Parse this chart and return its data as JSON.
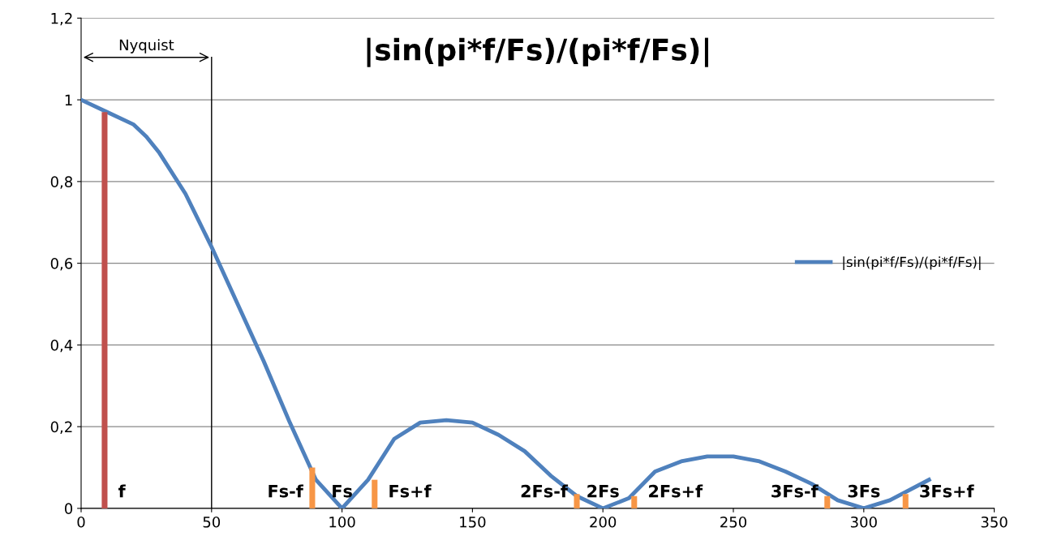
{
  "chart_data": {
    "type": "line",
    "title": "|sin(pi*f/Fs)/(pi*f/Fs)|",
    "xlim": [
      0,
      350
    ],
    "xticks": [
      0,
      50,
      100,
      150,
      200,
      250,
      300,
      350
    ],
    "ylim": [
      0,
      1.2
    ],
    "yticks": [
      {
        "value": 0,
        "label": "0"
      },
      {
        "value": 0.2,
        "label": "0,2"
      },
      {
        "value": 0.4,
        "label": "0,4"
      },
      {
        "value": 0.6,
        "label": "0,6"
      },
      {
        "value": 0.8,
        "label": "0,8"
      },
      {
        "value": 1,
        "label": "1"
      },
      {
        "value": 1.2,
        "label": "1,2"
      }
    ],
    "grid": "y",
    "legend": "right",
    "marker": "none",
    "line_style": "solid",
    "series": [
      {
        "name": "|sin(pi*f/Fs)/(pi*f/Fs)|",
        "color": "#4f81bd",
        "x": [
          0,
          10,
          20,
          25,
          30,
          40,
          50,
          60,
          70,
          80,
          90,
          100,
          110,
          120,
          130,
          140,
          150,
          160,
          170,
          180,
          190,
          200,
          210,
          220,
          230,
          240,
          250,
          260,
          270,
          280,
          290,
          300,
          310,
          325
        ],
        "values": [
          1.0,
          0.97,
          0.94,
          0.91,
          0.87,
          0.77,
          0.64,
          0.5,
          0.36,
          0.21,
          0.07,
          0.0,
          0.07,
          0.17,
          0.21,
          0.216,
          0.21,
          0.18,
          0.14,
          0.08,
          0.03,
          0.0,
          0.025,
          0.09,
          0.115,
          0.127,
          0.127,
          0.115,
          0.09,
          0.06,
          0.02,
          0.0,
          0.02,
          0.07
        ]
      },
      {
        "type": "bar",
        "color": "#c0504d",
        "x": [
          9
        ],
        "values": [
          0.97
        ]
      },
      {
        "type": "bar",
        "color": "#f79646",
        "x": [
          88.6,
          112.5,
          190,
          212,
          286,
          316
        ],
        "values": [
          0.1,
          0.07,
          0.035,
          0.03,
          0.03,
          0.035
        ]
      }
    ],
    "ref_lines": [
      {
        "axis": "x",
        "value": 50,
        "label": "Nyquist",
        "color": "#000000"
      }
    ],
    "annotations": [
      {
        "text": "f",
        "x": 9,
        "y": 0
      },
      {
        "text": "Fs-f",
        "x": 88.6,
        "y": 0
      },
      {
        "text": "Fs",
        "x": 100,
        "y": 0
      },
      {
        "text": "Fs+f",
        "x": 112.5,
        "y": 0
      },
      {
        "text": "2Fs-f",
        "x": 190,
        "y": 0
      },
      {
        "text": "2Fs",
        "x": 200,
        "y": 0
      },
      {
        "text": "2Fs+f",
        "x": 212,
        "y": 0
      },
      {
        "text": "3Fs-f",
        "x": 286,
        "y": 0
      },
      {
        "text": "3Fs",
        "x": 300,
        "y": 0
      },
      {
        "text": "3Fs+f",
        "x": 316,
        "y": 0
      }
    ]
  }
}
